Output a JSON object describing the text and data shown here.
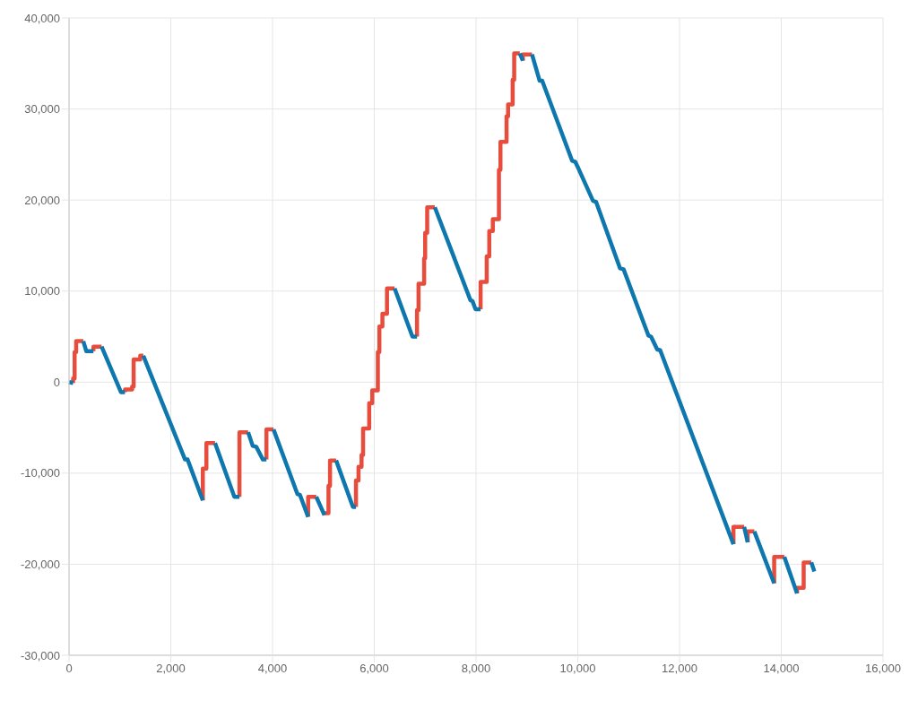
{
  "chart_data": {
    "type": "line",
    "grid": true,
    "xlim": [
      0,
      16000
    ],
    "xticks": [
      0,
      {
        "value": 2000,
        "label": "2,000"
      },
      {
        "value": 4000,
        "label": "4,000"
      },
      {
        "value": 6000,
        "label": "6,000"
      },
      {
        "value": 8000,
        "label": "8,000"
      },
      {
        "value": 10000,
        "label": "10,000"
      },
      {
        "value": 12000,
        "label": "12,000"
      },
      {
        "value": 14000,
        "label": "14,000"
      },
      {
        "value": 16000,
        "label": "16,000"
      }
    ],
    "ylim": [
      -30000,
      40000
    ],
    "yticks": [
      {
        "value": -30000,
        "label": "-30,000"
      },
      {
        "value": -20000,
        "label": "-20,000"
      },
      {
        "value": -10000,
        "label": "-10,000"
      },
      0,
      {
        "value": 10000,
        "label": "10,000"
      },
      {
        "value": 20000,
        "label": "20,000"
      },
      {
        "value": 30000,
        "label": "30,000"
      },
      {
        "value": 40000,
        "label": "40,000"
      }
    ],
    "series": [
      {
        "color": "#e74c3c",
        "x": [
          80,
          80,
          110,
          110,
          140,
          140,
          280,
          null,
          480,
          480,
          640,
          null,
          1100,
          1100,
          1240,
          1240,
          1270,
          1270,
          1400,
          1400,
          1460,
          null,
          2630,
          2630,
          2700,
          2700,
          2870,
          null,
          3350,
          3350,
          3520,
          null,
          3880,
          3880,
          4020,
          null,
          4700,
          4700,
          4860,
          null,
          5020,
          5020,
          5100,
          5100,
          5130,
          5130,
          5250,
          null,
          5640,
          5640,
          5690,
          5690,
          5750,
          5750,
          5780,
          5780,
          5900,
          5900,
          5960,
          5960,
          6070,
          6070,
          6100,
          6100,
          6160,
          6160,
          6250,
          6250,
          6400,
          null,
          6840,
          6840,
          6870,
          6870,
          6980,
          6980,
          7000,
          7000,
          7040,
          7040,
          7190,
          null,
          8090,
          8090,
          8210,
          8210,
          8260,
          8260,
          8330,
          8330,
          8450,
          8450,
          8480,
          8480,
          8600,
          8600,
          8630,
          8630,
          8720,
          8720,
          8750,
          8750,
          8860,
          null,
          8920,
          8920,
          9100,
          null,
          13060,
          13060,
          13270,
          null,
          13340,
          13340,
          13470,
          null,
          13860,
          13860,
          14060,
          null,
          14310,
          14310,
          14440,
          14440,
          14590
        ],
        "values": [
          -100,
          400,
          400,
          3300,
          3300,
          4500,
          4500,
          null,
          3400,
          3900,
          3900,
          null,
          -1100,
          -800,
          -800,
          -500,
          -500,
          2500,
          2500,
          2900,
          2900,
          null,
          -13000,
          -9500,
          -9500,
          -6700,
          -6700,
          null,
          -12600,
          -5500,
          -5500,
          null,
          -8500,
          -5200,
          -5200,
          null,
          -14800,
          -12600,
          -12600,
          null,
          -14600,
          -14400,
          -14400,
          -11400,
          -11400,
          -8600,
          -8600,
          null,
          -13700,
          -10800,
          -10800,
          -9300,
          -9300,
          -8000,
          -8000,
          -5100,
          -5100,
          -2300,
          -2300,
          -900,
          -900,
          3300,
          3300,
          6100,
          6100,
          7500,
          7500,
          10300,
          10300,
          null,
          5000,
          7900,
          7900,
          10800,
          10800,
          13600,
          13600,
          16400,
          16400,
          19200,
          19200,
          null,
          8000,
          11000,
          11000,
          13800,
          13800,
          16600,
          16600,
          17900,
          17900,
          23300,
          23300,
          26400,
          26400,
          29200,
          29200,
          30500,
          30500,
          33200,
          33200,
          36100,
          36100,
          null,
          35300,
          36000,
          36000,
          null,
          -17800,
          -15900,
          -15900,
          null,
          -17600,
          -16400,
          -16400,
          null,
          -22100,
          -19200,
          -19200,
          null,
          -23200,
          -22600,
          -22600,
          -19800,
          -19800
        ]
      },
      {
        "color": "#0e77ae",
        "x": [
          0,
          80,
          null,
          280,
          340,
          480,
          null,
          640,
          1020,
          1100,
          null,
          1460,
          2280,
          2330,
          2630,
          null,
          2870,
          3250,
          3350,
          null,
          3520,
          3610,
          3680,
          3810,
          3880,
          null,
          4020,
          4490,
          4540,
          4700,
          null,
          4860,
          5020,
          null,
          5250,
          5580,
          5640,
          null,
          6400,
          6750,
          6840,
          null,
          7190,
          7890,
          7930,
          7990,
          8090,
          null,
          8860,
          8920,
          null,
          9100,
          9250,
          9300,
          9890,
          9950,
          10010,
          10300,
          10360,
          10830,
          10900,
          11390,
          11440,
          11560,
          11620,
          13060,
          null,
          13270,
          13340,
          null,
          13470,
          13860,
          null,
          14060,
          14310,
          null,
          14590,
          14650
        ],
        "values": [
          0,
          -100,
          null,
          4500,
          3400,
          3400,
          null,
          3900,
          -1100,
          -1100,
          null,
          2900,
          -8500,
          -8500,
          -13000,
          null,
          -6700,
          -12600,
          -12600,
          null,
          -5500,
          -7000,
          -7100,
          -8500,
          -8500,
          null,
          -5200,
          -12300,
          -12400,
          -14800,
          null,
          -12600,
          -14600,
          null,
          -8600,
          -13700,
          -13700,
          null,
          10300,
          5000,
          5000,
          null,
          19200,
          9000,
          8900,
          8000,
          8000,
          null,
          36100,
          35300,
          null,
          36000,
          33100,
          33100,
          24300,
          24200,
          23500,
          19900,
          19800,
          12500,
          12400,
          5100,
          5000,
          3600,
          3500,
          -17800,
          null,
          -15900,
          -17600,
          null,
          -16400,
          -22100,
          null,
          -19200,
          -23200,
          null,
          -19800,
          -20800
        ]
      }
    ]
  }
}
